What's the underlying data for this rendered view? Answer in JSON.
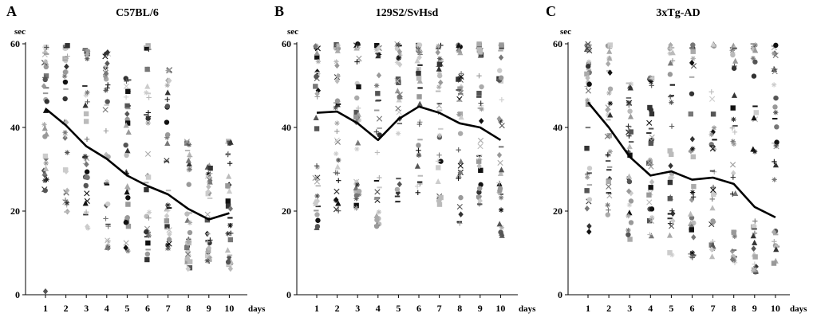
{
  "chart_data": [
    {
      "type": "scatter",
      "panel_label": "A",
      "title": "C57BL/6",
      "ylabel": "sec",
      "xlabel": "days",
      "x": [
        1,
        2,
        3,
        4,
        5,
        6,
        7,
        8,
        9,
        10
      ],
      "y_ticks": [
        0,
        20,
        40,
        60
      ],
      "ylim": [
        0,
        60
      ],
      "mean_line": [
        44.5,
        40.5,
        35.5,
        32.5,
        28.5,
        26,
        24,
        20.5,
        18,
        19.5
      ],
      "spread": [
        {
          "lo": 24,
          "hi": 60
        },
        {
          "lo": 19,
          "hi": 60
        },
        {
          "lo": 15,
          "hi": 59
        },
        {
          "lo": 11,
          "hi": 58
        },
        {
          "lo": 10,
          "hi": 52
        },
        {
          "lo": 7,
          "hi": 60
        },
        {
          "lo": 10,
          "hi": 54
        },
        {
          "lo": 6,
          "hi": 37
        },
        {
          "lo": 8,
          "hi": 31
        },
        {
          "lo": 6,
          "hi": 37
        }
      ],
      "outlier": {
        "x": 1,
        "y": 0.8
      }
    },
    {
      "type": "scatter",
      "panel_label": "B",
      "title": "129S2/SvHsd",
      "ylabel": "sec",
      "xlabel": "days",
      "x": [
        1,
        2,
        3,
        4,
        5,
        6,
        7,
        8,
        9,
        10
      ],
      "y_ticks": [
        0,
        20,
        40,
        60
      ],
      "ylim": [
        0,
        60
      ],
      "mean_line": [
        43.5,
        43.8,
        41,
        37,
        42,
        45,
        43.5,
        41,
        40,
        37
      ],
      "spread": [
        {
          "lo": 16,
          "hi": 60
        },
        {
          "lo": 20,
          "hi": 60
        },
        {
          "lo": 20,
          "hi": 60
        },
        {
          "lo": 16,
          "hi": 60
        },
        {
          "lo": 22,
          "hi": 60
        },
        {
          "lo": 23,
          "hi": 60
        },
        {
          "lo": 21,
          "hi": 60
        },
        {
          "lo": 17,
          "hi": 60
        },
        {
          "lo": 21,
          "hi": 60
        },
        {
          "lo": 14,
          "hi": 60
        }
      ]
    },
    {
      "type": "scatter",
      "panel_label": "C",
      "title": "3xTg-AD",
      "ylabel": "sec",
      "xlabel": "days",
      "x": [
        1,
        2,
        3,
        4,
        5,
        6,
        7,
        8,
        9,
        10
      ],
      "y_ticks": [
        0,
        20,
        40,
        60
      ],
      "ylim": [
        0,
        60
      ],
      "mean_line": [
        46,
        40,
        33,
        28.5,
        29.5,
        27.5,
        28,
        26.5,
        21,
        18.5
      ],
      "spread": [
        {
          "lo": 15,
          "hi": 60
        },
        {
          "lo": 19,
          "hi": 60
        },
        {
          "lo": 13,
          "hi": 51
        },
        {
          "lo": 14,
          "hi": 52
        },
        {
          "lo": 9,
          "hi": 60
        },
        {
          "lo": 8,
          "hi": 60
        },
        {
          "lo": 8,
          "hi": 60
        },
        {
          "lo": 7,
          "hi": 60
        },
        {
          "lo": 5,
          "hi": 60
        },
        {
          "lo": 7,
          "hi": 60
        }
      ]
    }
  ],
  "colors": {
    "axis": "#000000",
    "mean_line": "#000000",
    "marker_shades": [
      "#111111",
      "#333333",
      "#555555",
      "#777777",
      "#999999",
      "#aaaaaa",
      "#bbbbbb",
      "#cccccc"
    ]
  },
  "marker_shapes": [
    "circle",
    "square",
    "diamond",
    "triangle",
    "cross",
    "plus",
    "star",
    "dash"
  ]
}
